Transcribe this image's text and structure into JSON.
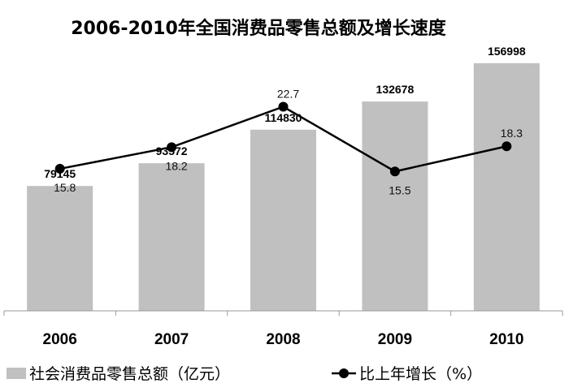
{
  "chart_data": {
    "type": "bar",
    "title": "2006-2010年全国消费品零售总额及增长速度",
    "categories": [
      "2006",
      "2007",
      "2008",
      "2009",
      "2010"
    ],
    "series": [
      {
        "name": "社会消费品零售总额（亿元）",
        "type": "bar",
        "values": [
          79145,
          93572,
          114830,
          132678,
          156998
        ],
        "labels": [
          "79145",
          "93572",
          "114830",
          "132678",
          "156998"
        ]
      },
      {
        "name": "比上年增长（%）",
        "type": "line",
        "values": [
          15.8,
          18.2,
          22.7,
          15.5,
          18.3
        ],
        "labels": [
          "15.8",
          "18.2",
          "22.7",
          "15.5",
          "18.3"
        ]
      }
    ],
    "bar_ylim": [
      0,
      160000
    ],
    "line_ylim": [
      0,
      25
    ],
    "grid": false,
    "legend": "bottom",
    "colors": {
      "bar": "#c0c0c0",
      "line": "#000000"
    }
  }
}
